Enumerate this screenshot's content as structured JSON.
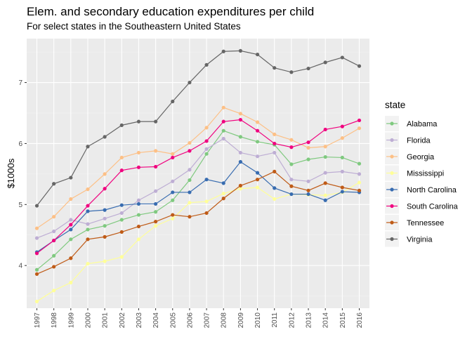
{
  "chart_data": {
    "type": "line",
    "title": "Elem. and secondary education expenditures per child",
    "subtitle": "For select states in the Southeastern United States",
    "xlabel": "",
    "ylabel": "$1000s",
    "x": [
      1997,
      1998,
      1999,
      2000,
      2001,
      2002,
      2003,
      2004,
      2005,
      2006,
      2007,
      2008,
      2009,
      2010,
      2011,
      2012,
      2013,
      2014,
      2015,
      2016
    ],
    "xlim": [
      1996.4,
      2016.6
    ],
    "ylim": [
      3.3,
      7.72
    ],
    "yticks": [
      4,
      5,
      6,
      7
    ],
    "grid": true,
    "legend": {
      "title": "state",
      "placement": "right"
    },
    "series": [
      {
        "name": "Alabama",
        "color": "#7fc97f",
        "values": [
          3.93,
          4.16,
          4.43,
          4.59,
          4.65,
          4.75,
          4.83,
          4.88,
          5.07,
          5.4,
          5.83,
          6.21,
          6.11,
          6.03,
          5.98,
          5.66,
          5.74,
          5.78,
          5.77,
          5.67
        ]
      },
      {
        "name": "Florida",
        "color": "#beaed4",
        "values": [
          4.45,
          4.56,
          4.75,
          4.68,
          4.77,
          4.86,
          5.07,
          5.22,
          5.38,
          5.57,
          5.91,
          6.08,
          5.85,
          5.79,
          5.85,
          5.41,
          5.38,
          5.52,
          5.54,
          5.5
        ]
      },
      {
        "name": "Georgia",
        "color": "#fdc086",
        "values": [
          4.61,
          4.8,
          5.09,
          5.25,
          5.5,
          5.77,
          5.85,
          5.88,
          5.83,
          6.01,
          6.26,
          6.59,
          6.49,
          6.35,
          6.15,
          6.06,
          5.93,
          5.95,
          6.09,
          6.25
        ]
      },
      {
        "name": "Mississippi",
        "color": "#ffff99",
        "values": [
          3.41,
          3.59,
          3.72,
          4.03,
          4.07,
          4.14,
          4.43,
          4.65,
          4.77,
          5.03,
          5.05,
          5.18,
          5.26,
          5.28,
          5.09,
          5.17,
          5.16,
          5.15,
          5.2,
          5.36
        ]
      },
      {
        "name": "North Carolina",
        "color": "#386cb0",
        "values": [
          4.22,
          4.41,
          4.59,
          4.89,
          4.91,
          4.99,
          5.01,
          5.01,
          5.2,
          5.2,
          5.41,
          5.35,
          5.7,
          5.52,
          5.27,
          5.17,
          5.17,
          5.07,
          5.21,
          5.2
        ]
      },
      {
        "name": "South Carolina",
        "color": "#f0027f",
        "values": [
          4.2,
          4.41,
          4.67,
          4.98,
          5.26,
          5.56,
          5.61,
          5.62,
          5.77,
          5.88,
          6.04,
          6.36,
          6.39,
          6.21,
          6.0,
          5.94,
          6.02,
          6.23,
          6.28,
          6.38
        ]
      },
      {
        "name": "Tennessee",
        "color": "#bf5b17",
        "values": [
          3.86,
          3.98,
          4.12,
          4.43,
          4.47,
          4.55,
          4.64,
          4.72,
          4.83,
          4.8,
          4.86,
          5.1,
          5.31,
          5.41,
          5.54,
          5.3,
          5.23,
          5.35,
          5.28,
          5.23
        ]
      },
      {
        "name": "Virginia",
        "color": "#666666",
        "values": [
          4.98,
          5.34,
          5.44,
          5.95,
          6.11,
          6.3,
          6.36,
          6.36,
          6.69,
          7.0,
          7.29,
          7.51,
          7.52,
          7.46,
          7.24,
          7.17,
          7.23,
          7.33,
          7.41,
          7.27
        ]
      }
    ]
  }
}
